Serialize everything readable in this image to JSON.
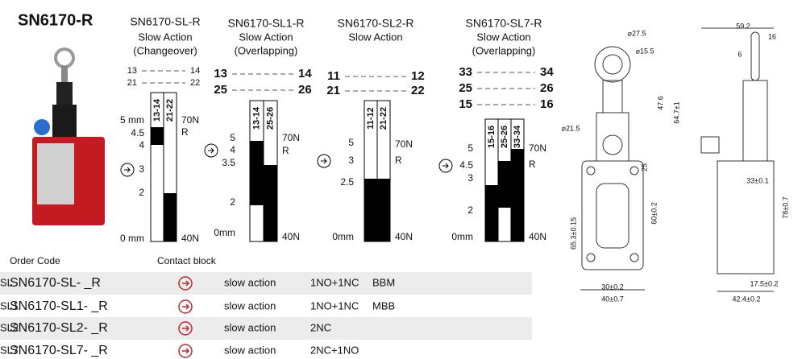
{
  "title": "SN6170-R",
  "diagrams": [
    {
      "name": "SN6170-SL-R",
      "action": "Slow Action",
      "mode": "(Changeover)",
      "contacts": [
        [
          "13",
          "14"
        ],
        [
          "21",
          "22"
        ]
      ],
      "columns": [
        "13-14",
        "21-22"
      ],
      "travel": [
        "5 mm",
        "4.5",
        "4",
        "3",
        "2",
        "0 mm"
      ],
      "forces": [
        "70N",
        "R",
        "40N"
      ]
    },
    {
      "name": "SN6170-SL1-R",
      "action": "Slow Action",
      "mode": "(Overlapping)",
      "contacts": [
        [
          "13",
          "14"
        ],
        [
          "25",
          "26"
        ]
      ],
      "columns": [
        "13-14",
        "25-26"
      ],
      "travel": [
        "5",
        "4",
        "3.5",
        "2",
        "0mm"
      ],
      "forces": [
        "70N",
        "R",
        "40N"
      ]
    },
    {
      "name": "SN6170-SL2-R",
      "action": "Slow Action",
      "contacts": [
        [
          "11",
          "12"
        ],
        [
          "21",
          "22"
        ]
      ],
      "columns": [
        "11-12",
        "21-22"
      ],
      "travel": [
        "5",
        "3",
        "2.5",
        "0mm"
      ],
      "forces": [
        "70N",
        "R",
        "40N"
      ]
    },
    {
      "name": "SN6170-SL7-R",
      "action": "Slow Action",
      "mode": "(Overlapping)",
      "contacts": [
        [
          "33",
          "34"
        ],
        [
          "25",
          "26"
        ],
        [
          "15",
          "16"
        ]
      ],
      "columns": [
        "15-16",
        "25-26",
        "33-34"
      ],
      "travel": [
        "5",
        "4.5",
        "3",
        "2",
        "0mm"
      ],
      "forces": [
        "70N",
        "R",
        "40N"
      ]
    }
  ],
  "table": {
    "headers": [
      "Order Code",
      "Contact block"
    ],
    "rows": [
      [
        "SN6170-SL- _R",
        "SL",
        "slow action",
        "1NO+1NC",
        "BBM"
      ],
      [
        "SN6170-SL1- _R",
        "SL1",
        "slow action",
        "1NO+1NC",
        "MBB"
      ],
      [
        "SN6170-SL2- _R",
        "SL2",
        "slow action",
        "2NC"
      ],
      [
        "SN6170-SL7- _R",
        "SL7",
        "slow action",
        "2NC+1NO"
      ]
    ]
  },
  "drawing": {
    "dimensions": [
      "⌀27.5",
      "⌀15.5",
      "47.6",
      "64.7±1",
      "⌀21.5",
      "25",
      "60±0.2",
      "65.3±0.15",
      "30±0.2",
      "40±0.7",
      "59.2",
      "16",
      "6",
      "33±0.1",
      "78±0.7",
      "17.5±0.2",
      "42.4±0.2"
    ]
  }
}
